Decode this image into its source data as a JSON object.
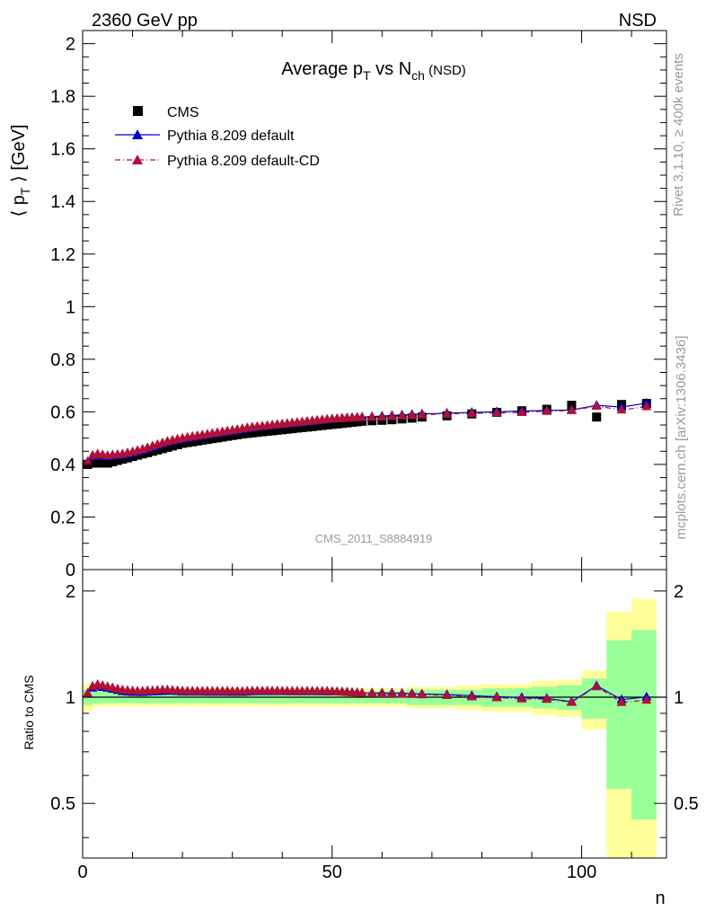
{
  "header": {
    "energy": "2360 GeV pp",
    "process": "NSD"
  },
  "side": {
    "rivet": "Rivet 3.1.10, ≥ 400k events",
    "source": "mcplots.cern.ch [arXiv:1306.3436]"
  },
  "chart_data": [
    {
      "type": "scatter",
      "panel": "main",
      "title": "Average p_T vs N_ch (NSD)",
      "analysis_label": "CMS_2011_S8884919",
      "ylabel": "⟨ p_T ⟩ [GeV]",
      "xlabel": "n",
      "xlim": [
        0,
        117
      ],
      "ylim": [
        0,
        2.05
      ],
      "yticks": [
        0,
        0.2,
        0.4,
        0.6,
        0.8,
        1,
        1.2,
        1.4,
        1.6,
        1.8,
        2
      ],
      "ytick_labels": [
        "0",
        "0.2",
        "0.4",
        "0.6",
        "0.8",
        "1",
        "1.2",
        "1.4",
        "1.6",
        "1.8",
        "2"
      ],
      "legend_position": "top-left",
      "colors": {
        "cms": "#000000",
        "default": "#0000cc",
        "cd": "#b0103a"
      },
      "x": [
        1,
        2,
        3,
        4,
        5,
        6,
        7,
        8,
        9,
        10,
        11,
        12,
        13,
        14,
        15,
        16,
        17,
        18,
        19,
        20,
        21,
        22,
        23,
        24,
        25,
        26,
        27,
        28,
        29,
        30,
        31,
        32,
        33,
        34,
        35,
        36,
        37,
        38,
        39,
        40,
        41,
        42,
        43,
        44,
        45,
        46,
        47,
        48,
        49,
        50,
        51,
        52,
        53,
        54,
        55,
        56,
        58,
        60,
        62,
        64,
        66,
        68,
        73,
        78,
        83,
        88,
        93,
        98,
        103,
        108,
        113
      ],
      "series": [
        {
          "name": "CMS",
          "marker": "square",
          "values": [
            0.4,
            0.405,
            0.405,
            0.405,
            0.405,
            0.41,
            0.415,
            0.42,
            0.425,
            0.43,
            0.435,
            0.44,
            0.445,
            0.45,
            0.455,
            0.46,
            0.465,
            0.47,
            0.475,
            0.48,
            0.483,
            0.486,
            0.489,
            0.492,
            0.495,
            0.498,
            0.501,
            0.504,
            0.507,
            0.51,
            0.513,
            0.516,
            0.518,
            0.52,
            0.522,
            0.524,
            0.526,
            0.528,
            0.53,
            0.532,
            0.534,
            0.536,
            0.538,
            0.54,
            0.542,
            0.544,
            0.546,
            0.548,
            0.55,
            0.552,
            0.554,
            0.556,
            0.558,
            0.56,
            0.562,
            0.564,
            0.566,
            0.568,
            0.57,
            0.573,
            0.576,
            0.58,
            0.585,
            0.592,
            0.598,
            0.604,
            0.61,
            0.625,
            0.58,
            0.628,
            0.632
          ]
        },
        {
          "name": "Pythia 8.209 default",
          "marker": "triangle",
          "line": "solid",
          "values": [
            0.41,
            0.43,
            0.435,
            0.432,
            0.43,
            0.432,
            0.434,
            0.436,
            0.44,
            0.444,
            0.449,
            0.454,
            0.46,
            0.466,
            0.472,
            0.478,
            0.484,
            0.489,
            0.493,
            0.497,
            0.5,
            0.503,
            0.506,
            0.509,
            0.512,
            0.515,
            0.518,
            0.521,
            0.524,
            0.527,
            0.53,
            0.533,
            0.536,
            0.539,
            0.542,
            0.544,
            0.546,
            0.548,
            0.55,
            0.552,
            0.554,
            0.556,
            0.558,
            0.56,
            0.562,
            0.564,
            0.566,
            0.568,
            0.57,
            0.572,
            0.574,
            0.576,
            0.577,
            0.578,
            0.579,
            0.58,
            0.582,
            0.584,
            0.586,
            0.588,
            0.59,
            0.592,
            0.595,
            0.598,
            0.6,
            0.603,
            0.605,
            0.607,
            0.625,
            0.618,
            0.633
          ]
        },
        {
          "name": "Pythia 8.209 default-CD",
          "marker": "triangle",
          "line": "dashdot",
          "values": [
            0.41,
            0.435,
            0.44,
            0.437,
            0.434,
            0.436,
            0.438,
            0.44,
            0.444,
            0.448,
            0.453,
            0.458,
            0.464,
            0.47,
            0.476,
            0.482,
            0.488,
            0.492,
            0.496,
            0.5,
            0.503,
            0.506,
            0.509,
            0.512,
            0.515,
            0.518,
            0.521,
            0.524,
            0.527,
            0.53,
            0.533,
            0.536,
            0.539,
            0.542,
            0.544,
            0.546,
            0.548,
            0.55,
            0.552,
            0.554,
            0.556,
            0.558,
            0.56,
            0.562,
            0.564,
            0.566,
            0.568,
            0.57,
            0.572,
            0.573,
            0.574,
            0.575,
            0.576,
            0.577,
            0.578,
            0.579,
            0.58,
            0.581,
            0.583,
            0.585,
            0.587,
            0.589,
            0.592,
            0.594,
            0.596,
            0.598,
            0.602,
            0.605,
            0.622,
            0.607,
            0.62
          ]
        }
      ]
    },
    {
      "type": "line",
      "panel": "ratio",
      "ylabel": "Ratio to CMS",
      "xlabel": "n",
      "xlim": [
        0,
        117
      ],
      "ylim": [
        0.35,
        2.3
      ],
      "yscale": "log",
      "yticks": [
        0.5,
        1,
        2
      ],
      "ytick_labels": [
        "0.5",
        "1",
        "2"
      ],
      "xticks": [
        0,
        50,
        100
      ],
      "xtick_labels": [
        "0",
        "50",
        "100"
      ],
      "reference": 1,
      "band_colors": {
        "outer": "#ffff99",
        "inner": "#99ff99"
      },
      "band_edges": [
        0,
        2,
        4,
        6,
        8,
        10,
        12,
        14,
        16,
        18,
        20,
        22,
        24,
        26,
        28,
        30,
        32,
        34,
        36,
        38,
        40,
        42,
        44,
        46,
        48,
        50,
        52,
        54,
        56,
        58,
        61,
        63,
        65,
        67,
        70,
        75,
        80,
        85,
        90,
        95,
        100,
        105,
        110,
        115
      ],
      "band_outer": [
        0.09,
        0.06,
        0.06,
        0.06,
        0.06,
        0.06,
        0.06,
        0.06,
        0.06,
        0.06,
        0.06,
        0.06,
        0.06,
        0.06,
        0.06,
        0.06,
        0.06,
        0.06,
        0.06,
        0.06,
        0.06,
        0.06,
        0.06,
        0.06,
        0.06,
        0.06,
        0.06,
        0.06,
        0.06,
        0.06,
        0.06,
        0.06,
        0.07,
        0.07,
        0.07,
        0.08,
        0.09,
        0.09,
        0.11,
        0.12,
        0.19,
        0.75,
        0.9
      ],
      "band_inner": [
        0.05,
        0.04,
        0.04,
        0.04,
        0.04,
        0.04,
        0.04,
        0.04,
        0.04,
        0.04,
        0.04,
        0.04,
        0.04,
        0.04,
        0.04,
        0.04,
        0.04,
        0.04,
        0.04,
        0.04,
        0.04,
        0.04,
        0.04,
        0.04,
        0.04,
        0.04,
        0.04,
        0.04,
        0.04,
        0.04,
        0.04,
        0.04,
        0.05,
        0.05,
        0.05,
        0.05,
        0.06,
        0.06,
        0.07,
        0.08,
        0.13,
        0.45,
        0.55
      ],
      "series": [
        {
          "name": "Pythia 8.209 default",
          "values": [
            1.025,
            1.062,
            1.074,
            1.067,
            1.062,
            1.054,
            1.046,
            1.038,
            1.035,
            1.033,
            1.032,
            1.032,
            1.034,
            1.036,
            1.037,
            1.039,
            1.041,
            1.04,
            1.038,
            1.035,
            1.035,
            1.035,
            1.035,
            1.035,
            1.034,
            1.034,
            1.034,
            1.034,
            1.034,
            1.033,
            1.033,
            1.033,
            1.035,
            1.037,
            1.038,
            1.038,
            1.038,
            1.038,
            1.038,
            1.038,
            1.037,
            1.037,
            1.037,
            1.037,
            1.037,
            1.037,
            1.037,
            1.037,
            1.036,
            1.036,
            1.036,
            1.036,
            1.034,
            1.032,
            1.03,
            1.028,
            1.028,
            1.028,
            1.028,
            1.026,
            1.024,
            1.021,
            1.017,
            1.01,
            1.003,
            0.998,
            0.992,
            0.971,
            1.078,
            0.984,
            1.002
          ]
        },
        {
          "name": "Pythia 8.209 default-CD",
          "values": [
            1.025,
            1.074,
            1.086,
            1.079,
            1.072,
            1.063,
            1.055,
            1.048,
            1.045,
            1.042,
            1.041,
            1.041,
            1.043,
            1.044,
            1.046,
            1.048,
            1.049,
            1.047,
            1.044,
            1.042,
            1.041,
            1.041,
            1.041,
            1.041,
            1.04,
            1.04,
            1.04,
            1.04,
            1.04,
            1.039,
            1.039,
            1.039,
            1.041,
            1.042,
            1.042,
            1.042,
            1.042,
            1.042,
            1.042,
            1.041,
            1.041,
            1.041,
            1.041,
            1.041,
            1.041,
            1.04,
            1.04,
            1.04,
            1.04,
            1.038,
            1.036,
            1.034,
            1.032,
            1.03,
            1.028,
            1.027,
            1.025,
            1.023,
            1.023,
            1.021,
            1.019,
            1.016,
            1.012,
            1.003,
            0.997,
            0.99,
            0.987,
            0.968,
            1.072,
            0.967,
            0.981
          ]
        }
      ]
    }
  ]
}
